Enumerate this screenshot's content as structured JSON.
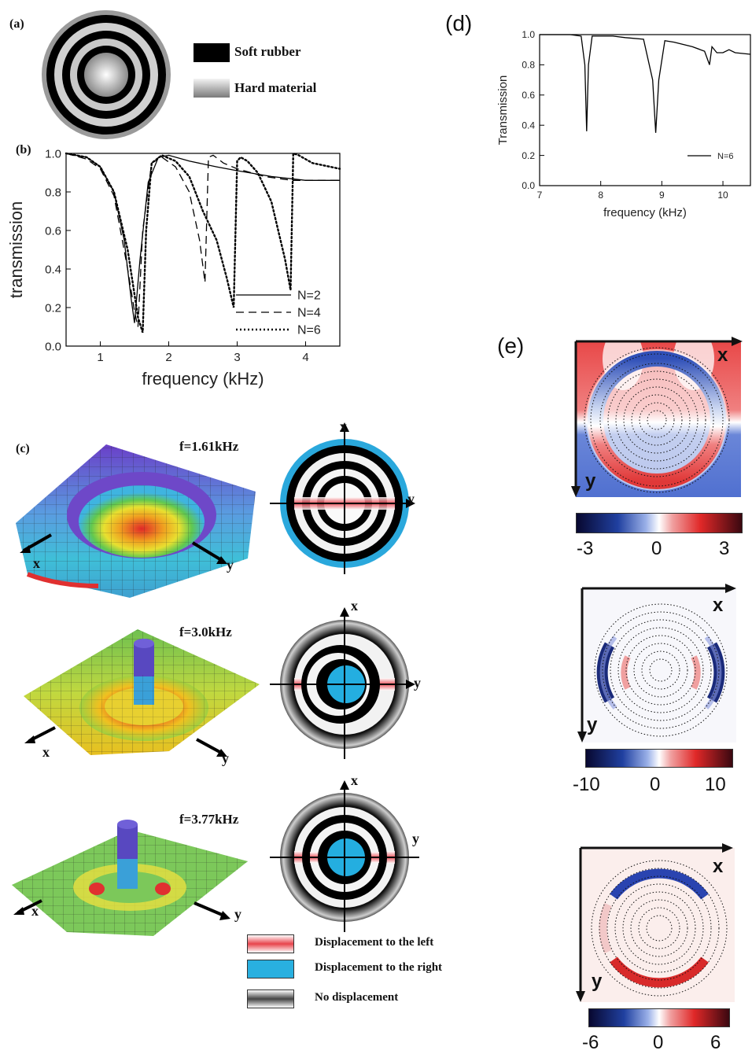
{
  "panel_a": {
    "label": "(a)",
    "legend": [
      {
        "text": "Soft rubber",
        "color": "#000000"
      },
      {
        "text": "Hard material",
        "color": "#9a9a9a"
      }
    ]
  },
  "panel_b": {
    "label": "(b)"
  },
  "panel_c": {
    "label": "(c)",
    "modes": [
      {
        "freq": "f=1.61kHz"
      },
      {
        "freq": "f=3.0kHz"
      },
      {
        "freq": "f=3.77kHz"
      }
    ],
    "axis_x": "x",
    "axis_y": "y",
    "legend": [
      {
        "text": "Displacement to the left",
        "color": "#e8444c"
      },
      {
        "text": "Displacement to the right",
        "color": "#29b0e0"
      },
      {
        "text": "No displacement",
        "color": "#777777"
      }
    ]
  },
  "panel_d": {
    "label": "(d)"
  },
  "panel_e": {
    "label": "(e)",
    "axis_x": "x",
    "axis_y": "y",
    "colorbars": [
      {
        "min": "-3",
        "mid": "0",
        "max": "3"
      },
      {
        "min": "-10",
        "mid": "0",
        "max": "10"
      },
      {
        "min": "-6",
        "mid": "0",
        "max": "6"
      }
    ]
  },
  "chart_data": [
    {
      "id": "b",
      "type": "line",
      "xlabel": "frequency (kHz)",
      "ylabel": "transmission",
      "xlim": [
        0.5,
        4.5
      ],
      "ylim": [
        0,
        1.0
      ],
      "xticks": [
        "1",
        "2",
        "3",
        "4"
      ],
      "yticks": [
        "0.0",
        "0.2",
        "0.4",
        "0.6",
        "0.8",
        "1.0"
      ],
      "legend_position": "bottom-right",
      "series": [
        {
          "name": "N=2",
          "style": "solid",
          "x": [
            0.5,
            0.8,
            1.0,
            1.2,
            1.35,
            1.45,
            1.5,
            1.58,
            1.7,
            1.85,
            2.0,
            2.3,
            2.7,
            3.0,
            3.5,
            4.0,
            4.5
          ],
          "y": [
            1.0,
            0.98,
            0.93,
            0.8,
            0.55,
            0.25,
            0.12,
            0.45,
            0.85,
            0.98,
            0.99,
            0.96,
            0.93,
            0.91,
            0.88,
            0.86,
            0.86
          ]
        },
        {
          "name": "N=4",
          "style": "dash",
          "x": [
            0.5,
            0.8,
            1.0,
            1.2,
            1.4,
            1.5,
            1.55,
            1.62,
            1.75,
            1.9,
            2.1,
            2.3,
            2.45,
            2.53,
            2.58,
            2.65,
            2.8,
            3.0,
            3.4,
            3.8,
            4.5
          ],
          "y": [
            1.0,
            0.97,
            0.92,
            0.78,
            0.4,
            0.18,
            0.1,
            0.6,
            0.95,
            0.98,
            0.93,
            0.8,
            0.55,
            0.33,
            0.98,
            0.99,
            0.95,
            0.92,
            0.88,
            0.86,
            0.86
          ]
        },
        {
          "name": "N=6",
          "style": "dot",
          "x": [
            0.5,
            0.8,
            1.0,
            1.2,
            1.4,
            1.55,
            1.62,
            1.67,
            1.75,
            1.9,
            2.1,
            2.3,
            2.5,
            2.7,
            2.85,
            2.95,
            3.0,
            3.05,
            3.15,
            3.3,
            3.5,
            3.7,
            3.78,
            3.82,
            3.9,
            4.1,
            4.5
          ],
          "y": [
            1.0,
            0.98,
            0.93,
            0.8,
            0.5,
            0.15,
            0.07,
            0.6,
            0.95,
            0.99,
            0.96,
            0.88,
            0.7,
            0.55,
            0.35,
            0.2,
            0.96,
            0.98,
            0.96,
            0.9,
            0.75,
            0.45,
            0.29,
            1.0,
            0.99,
            0.95,
            0.92
          ]
        }
      ]
    },
    {
      "id": "d",
      "type": "line",
      "xlabel": "frequency (kHz)",
      "ylabel": "Transmission",
      "xlim": [
        7,
        10.45
      ],
      "ylim": [
        0,
        1.0
      ],
      "xticks": [
        "7",
        "8",
        "9",
        "10"
      ],
      "yticks": [
        "0.0",
        "0.2",
        "0.4",
        "0.6",
        "0.8",
        "1.0"
      ],
      "legend_position": "bottom-right",
      "series": [
        {
          "name": "N=6",
          "style": "solid",
          "x": [
            7.0,
            7.5,
            7.68,
            7.74,
            7.77,
            7.8,
            7.86,
            8.0,
            8.2,
            8.4,
            8.7,
            8.85,
            8.9,
            8.95,
            9.05,
            9.2,
            9.5,
            9.7,
            9.78,
            9.82,
            9.9,
            10.0,
            10.1,
            10.2,
            10.45
          ],
          "y": [
            1.0,
            1.0,
            0.99,
            0.8,
            0.36,
            0.8,
            0.99,
            0.99,
            0.99,
            0.98,
            0.97,
            0.7,
            0.35,
            0.7,
            0.96,
            0.95,
            0.92,
            0.89,
            0.8,
            0.92,
            0.88,
            0.88,
            0.9,
            0.88,
            0.87
          ]
        }
      ]
    }
  ]
}
